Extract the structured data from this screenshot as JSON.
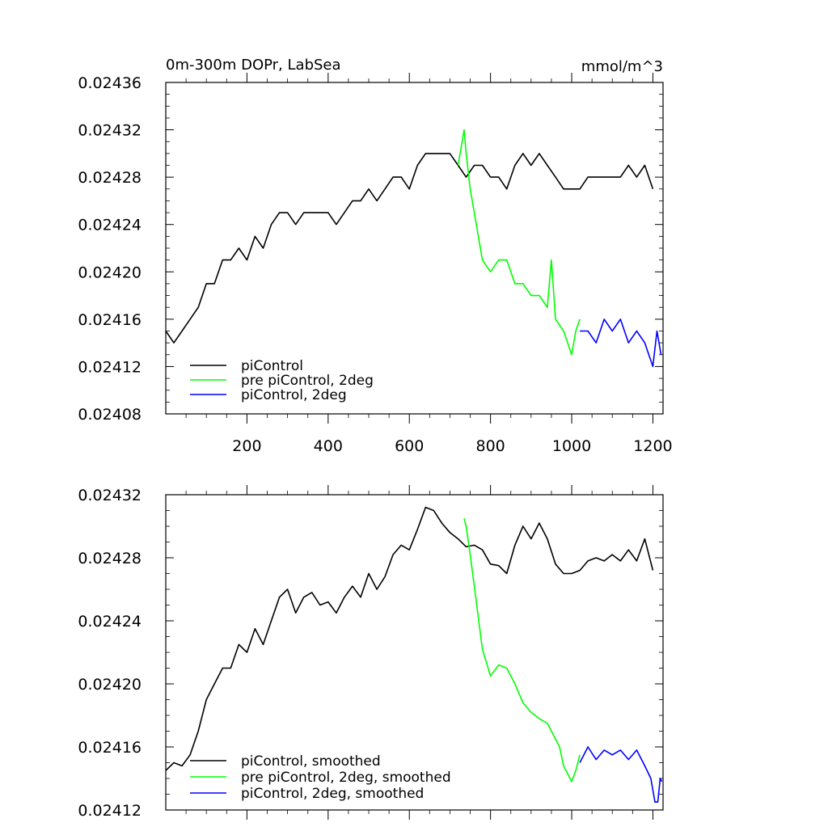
{
  "chart_data": [
    {
      "type": "line",
      "title": "0m-300m DOPr, LabSea",
      "units": "mmol/m^3",
      "xlim": [
        0,
        1225
      ],
      "ylim": [
        0.02408,
        0.02436
      ],
      "xticks": [
        200,
        400,
        600,
        800,
        1000,
        1200
      ],
      "xtick_labels": [
        "200",
        "400",
        "600",
        "800",
        "1000",
        "1200"
      ],
      "yticks": [
        0.02408,
        0.02412,
        0.02416,
        0.0242,
        0.02424,
        0.02428,
        0.02432,
        0.02436
      ],
      "ytick_labels": [
        "0.02408",
        "0.02412",
        "0.02416",
        "0.02420",
        "0.02424",
        "0.02428",
        "0.02432",
        "0.02436"
      ],
      "legend_position": "bottom-left",
      "series": [
        {
          "name": "piControl",
          "color": "#000000",
          "x": [
            0,
            20,
            40,
            60,
            80,
            100,
            120,
            140,
            160,
            180,
            200,
            220,
            240,
            260,
            280,
            300,
            320,
            340,
            360,
            380,
            400,
            420,
            440,
            460,
            480,
            500,
            520,
            540,
            560,
            580,
            600,
            620,
            640,
            660,
            680,
            700,
            720,
            740,
            760,
            780,
            800,
            820,
            840,
            860,
            880,
            900,
            920,
            940,
            960,
            980,
            1000,
            1020,
            1040,
            1060,
            1080,
            1100,
            1120,
            1140,
            1160,
            1180,
            1200
          ],
          "values": [
            0.02415,
            0.02414,
            0.02415,
            0.02416,
            0.02417,
            0.02419,
            0.02419,
            0.02421,
            0.02421,
            0.02422,
            0.02421,
            0.02423,
            0.02422,
            0.02424,
            0.02425,
            0.02425,
            0.02424,
            0.02425,
            0.02425,
            0.02425,
            0.02425,
            0.02424,
            0.02425,
            0.02426,
            0.02426,
            0.02427,
            0.02426,
            0.02427,
            0.02428,
            0.02428,
            0.02427,
            0.02429,
            0.0243,
            0.0243,
            0.0243,
            0.0243,
            0.02429,
            0.02428,
            0.02429,
            0.02429,
            0.02428,
            0.02428,
            0.02427,
            0.02429,
            0.0243,
            0.02429,
            0.0243,
            0.02429,
            0.02428,
            0.02427,
            0.02427,
            0.02427,
            0.02428,
            0.02428,
            0.02428,
            0.02428,
            0.02428,
            0.02429,
            0.02428,
            0.02429,
            0.02427
          ]
        },
        {
          "name": "pre piControl, 2deg",
          "color": "#00ff00",
          "x": [
            720,
            735,
            740,
            750,
            760,
            770,
            780,
            800,
            820,
            840,
            860,
            880,
            900,
            920,
            940,
            950,
            960,
            980,
            1000,
            1010,
            1020
          ],
          "values": [
            0.02429,
            0.02432,
            0.0243,
            0.02427,
            0.02425,
            0.02423,
            0.02421,
            0.0242,
            0.02421,
            0.02421,
            0.02419,
            0.02419,
            0.02418,
            0.02418,
            0.02417,
            0.02421,
            0.02416,
            0.02415,
            0.02413,
            0.02415,
            0.02416
          ]
        },
        {
          "name": "piControl, 2deg",
          "color": "#0000ff",
          "x": [
            1020,
            1040,
            1060,
            1080,
            1100,
            1120,
            1140,
            1160,
            1180,
            1200,
            1210,
            1220
          ],
          "values": [
            0.02415,
            0.02415,
            0.02414,
            0.02416,
            0.02415,
            0.02416,
            0.02414,
            0.02415,
            0.02414,
            0.02412,
            0.02415,
            0.02413
          ]
        }
      ]
    },
    {
      "type": "line",
      "title": "",
      "xlim": [
        0,
        1225
      ],
      "ylim": [
        0.02412,
        0.02432
      ],
      "xticks": [
        200,
        400,
        600,
        800,
        1000,
        1200
      ],
      "xtick_labels": [],
      "yticks": [
        0.02412,
        0.02416,
        0.0242,
        0.02424,
        0.02428,
        0.02432
      ],
      "ytick_labels": [
        "0.02412",
        "0.02416",
        "0.02420",
        "0.02424",
        "0.02428",
        "0.02432"
      ],
      "legend_position": "bottom-left",
      "series": [
        {
          "name": "piControl, smoothed",
          "color": "#000000",
          "x": [
            0,
            20,
            40,
            60,
            80,
            100,
            120,
            140,
            160,
            180,
            200,
            220,
            240,
            260,
            280,
            300,
            320,
            340,
            360,
            380,
            400,
            420,
            440,
            460,
            480,
            500,
            520,
            540,
            560,
            580,
            600,
            620,
            640,
            660,
            680,
            700,
            720,
            740,
            760,
            780,
            800,
            820,
            840,
            860,
            880,
            900,
            920,
            940,
            960,
            980,
            1000,
            1020,
            1040,
            1060,
            1080,
            1100,
            1120,
            1140,
            1160,
            1180,
            1200
          ],
          "values": [
            0.024145,
            0.02415,
            0.024148,
            0.024155,
            0.02417,
            0.02419,
            0.0242,
            0.02421,
            0.02421,
            0.024225,
            0.02422,
            0.024235,
            0.024225,
            0.02424,
            0.024255,
            0.02426,
            0.024245,
            0.024255,
            0.024258,
            0.02425,
            0.024252,
            0.024245,
            0.024255,
            0.024262,
            0.024255,
            0.02427,
            0.02426,
            0.024268,
            0.024282,
            0.024288,
            0.024285,
            0.024298,
            0.024312,
            0.02431,
            0.024302,
            0.024296,
            0.024292,
            0.024287,
            0.024288,
            0.024285,
            0.024276,
            0.024275,
            0.02427,
            0.024288,
            0.0243,
            0.024292,
            0.024302,
            0.024292,
            0.024276,
            0.02427,
            0.02427,
            0.024272,
            0.024278,
            0.02428,
            0.024278,
            0.024282,
            0.024278,
            0.024285,
            0.024278,
            0.024292,
            0.024272
          ]
        },
        {
          "name": "pre piControl, 2deg, smoothed",
          "color": "#00ff00",
          "x": [
            735,
            740,
            750,
            760,
            770,
            780,
            800,
            820,
            840,
            860,
            880,
            900,
            920,
            940,
            960,
            970,
            980,
            1000,
            1010,
            1020
          ],
          "values": [
            0.024305,
            0.0243,
            0.024282,
            0.024262,
            0.024242,
            0.024222,
            0.024205,
            0.024212,
            0.02421,
            0.0242,
            0.024188,
            0.024182,
            0.024178,
            0.024175,
            0.024165,
            0.02416,
            0.024148,
            0.024138,
            0.024145,
            0.024155
          ]
        },
        {
          "name": "piControl, 2deg, smoothed",
          "color": "#0000ff",
          "x": [
            1020,
            1040,
            1060,
            1080,
            1100,
            1120,
            1140,
            1160,
            1180,
            1195,
            1205,
            1212,
            1218,
            1222
          ],
          "values": [
            0.02415,
            0.02416,
            0.024152,
            0.024158,
            0.024155,
            0.024158,
            0.024152,
            0.024158,
            0.024148,
            0.02414,
            0.024125,
            0.024125,
            0.02414,
            0.024138
          ]
        }
      ]
    }
  ]
}
